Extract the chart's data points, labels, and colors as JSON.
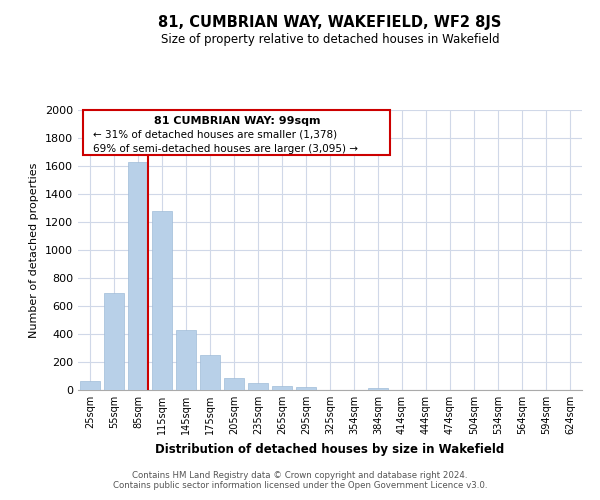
{
  "title": "81, CUMBRIAN WAY, WAKEFIELD, WF2 8JS",
  "subtitle": "Size of property relative to detached houses in Wakefield",
  "xlabel": "Distribution of detached houses by size in Wakefield",
  "ylabel": "Number of detached properties",
  "categories": [
    "25sqm",
    "55sqm",
    "85sqm",
    "115sqm",
    "145sqm",
    "175sqm",
    "205sqm",
    "235sqm",
    "265sqm",
    "295sqm",
    "325sqm",
    "354sqm",
    "384sqm",
    "414sqm",
    "444sqm",
    "474sqm",
    "504sqm",
    "534sqm",
    "564sqm",
    "594sqm",
    "624sqm"
  ],
  "values": [
    65,
    690,
    1630,
    1280,
    430,
    250,
    85,
    50,
    30,
    20,
    0,
    0,
    15,
    0,
    0,
    0,
    0,
    0,
    0,
    0,
    0
  ],
  "bar_color": "#b8d0e8",
  "vline_x_index": 2,
  "vline_color": "#cc0000",
  "ylim": [
    0,
    2000
  ],
  "yticks": [
    0,
    200,
    400,
    600,
    800,
    1000,
    1200,
    1400,
    1600,
    1800,
    2000
  ],
  "annotation_title": "81 CUMBRIAN WAY: 99sqm",
  "annotation_line1": "← 31% of detached houses are smaller (1,378)",
  "annotation_line2": "69% of semi-detached houses are larger (3,095) →",
  "footer_line1": "Contains HM Land Registry data © Crown copyright and database right 2024.",
  "footer_line2": "Contains public sector information licensed under the Open Government Licence v3.0.",
  "bg_color": "#ffffff",
  "grid_color": "#d0d8e8"
}
